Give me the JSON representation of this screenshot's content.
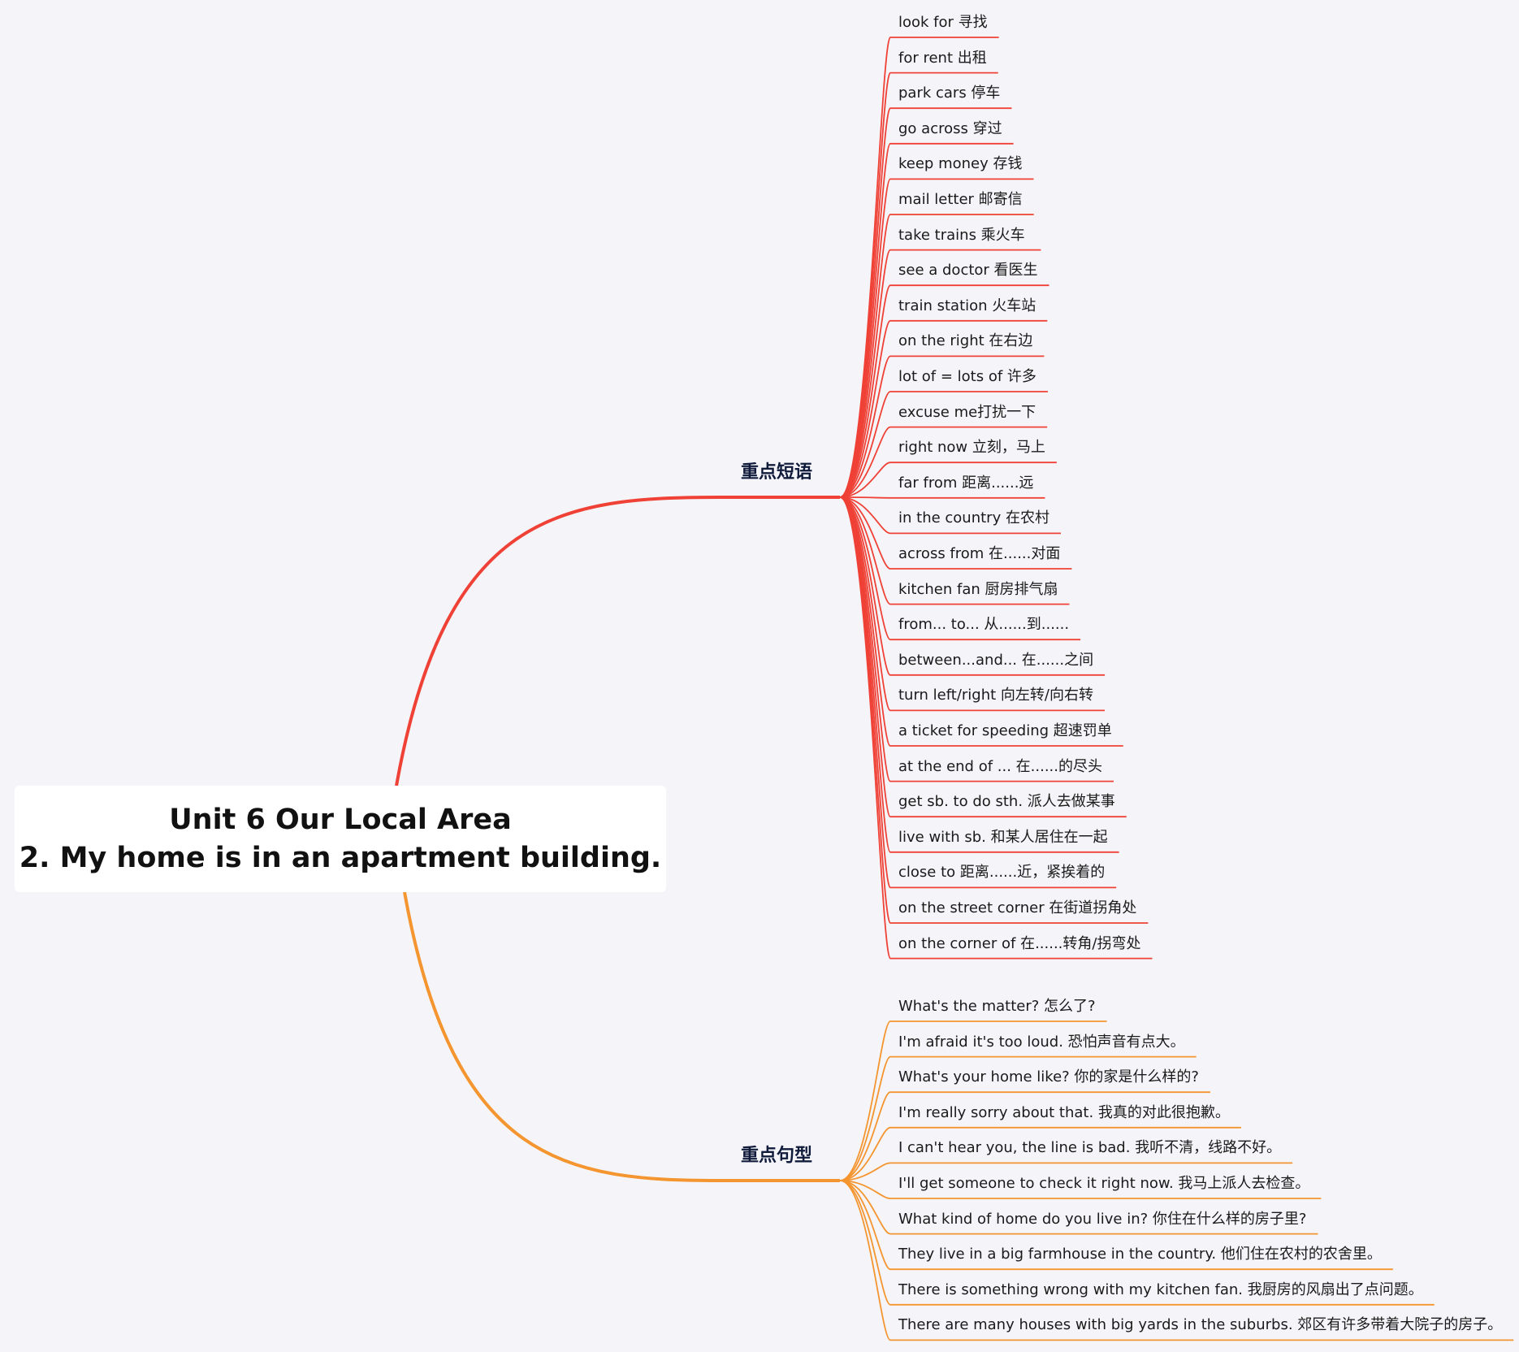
{
  "root": {
    "title_line1": "Unit 6 Our Local Area",
    "title_line2": "2. My home is in an apartment building."
  },
  "branches": [
    {
      "title": "重点短语",
      "color": "#ef4136",
      "items": [
        "look for 寻找",
        "for rent 出租",
        "park cars 停车",
        "go across 穿过",
        "keep money 存钱",
        "mail letter 邮寄信",
        "take trains  乘火车",
        "see a doctor 看医生",
        "train station 火车站",
        "on the right 在右边",
        "lot of = lots of 许多",
        "excuse me打扰一下",
        "right now 立刻，马上",
        "far from 距离......远",
        "in the country 在农村",
        "across from 在......对面",
        "kitchen fan 厨房排气扇",
        "from... to... 从......到......",
        "between...and... 在......之间",
        "turn left/right 向左转/向右转",
        "a ticket for speeding 超速罚单",
        "at the end of ... 在......的尽头",
        "get sb. to do sth. 派人去做某事",
        "live with sb. 和某人居住在一起",
        "close to 距离......近，紧挨着的",
        "on the street corner 在街道拐角处",
        "on the corner of 在......转角/拐弯处"
      ]
    },
    {
      "title": "重点句型",
      "color": "#f4952f",
      "items": [
        "What's the matter? 怎么了?",
        "I'm afraid it's too loud. 恐怕声音有点大。",
        "What's your home like? 你的家是什么样的?",
        "I'm really sorry about that. 我真的对此很抱歉。",
        "I can't hear you, the line is bad. 我听不清，线路不好。",
        "I'll get someone to check it right now. 我马上派人去检查。",
        "What kind of home do you live in? 你住在什么样的房子里?",
        "They live in a big farmhouse in the country. 他们住在农村的农舍里。",
        "There is something wrong with my kitchen fan. 我厨房的风扇出了点问题。",
        "There are many houses with big yards in the suburbs. 郊区有许多带着大院子的房子。"
      ]
    }
  ]
}
